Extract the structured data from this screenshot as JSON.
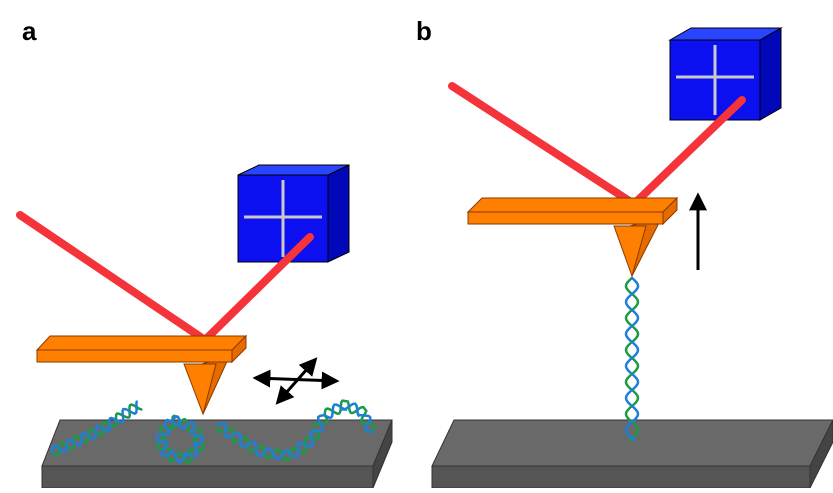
{
  "panels": [
    {
      "label": "a",
      "mode": "imaging"
    },
    {
      "label": "b",
      "mode": "force-spectroscopy"
    }
  ],
  "colors": {
    "laser": "#f4333a",
    "cantilever": "#ff8000",
    "cantilever_side": "#e56a00",
    "detector_front": "#0c0ff0",
    "detector_side": "#0008b8",
    "detector_top": "#2a45ff",
    "detector_cross": "#c9c9c9",
    "substrate_top": "#696969",
    "substrate_front": "#555555",
    "substrate_side": "#444444",
    "dna_strand_1": "#1a9a4c",
    "dna_strand_2": "#1e7fd6",
    "arrow": "#000000"
  },
  "icons": {
    "scan_arrows": "four-headed-scan-arrow",
    "pull_arrow": "up-arrow"
  }
}
